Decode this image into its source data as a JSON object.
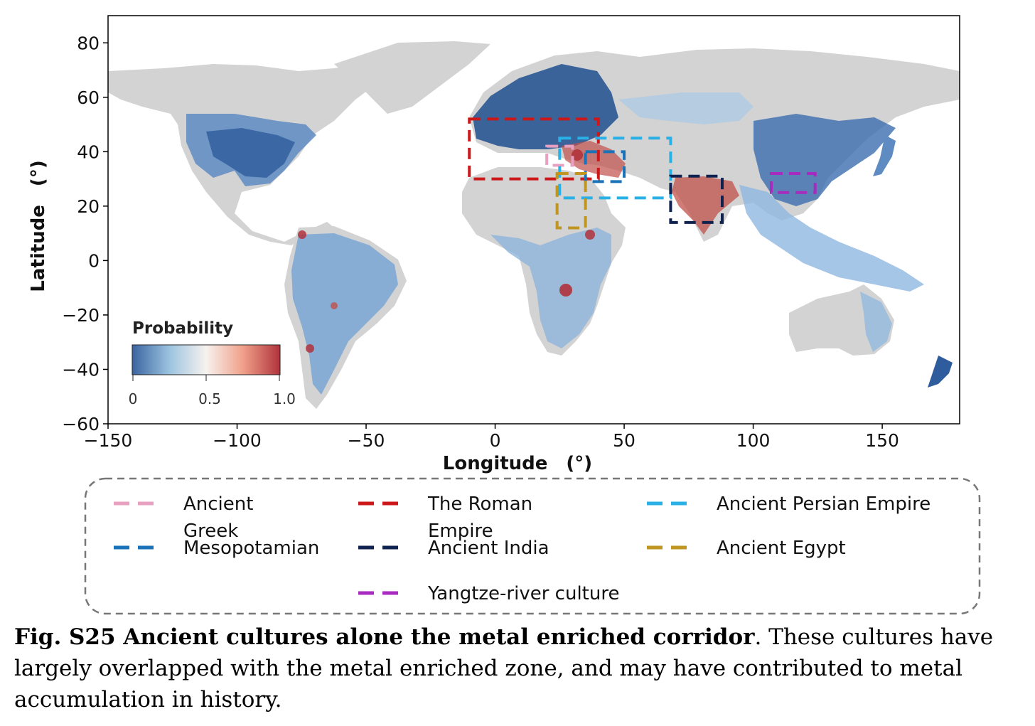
{
  "chart_data": {
    "type": "map",
    "xlabel": "Longitude　(°)",
    "ylabel": "Latitude　(°)",
    "xlim": [
      -150,
      180
    ],
    "ylim": [
      -60,
      90
    ],
    "xticks": [
      -150,
      -100,
      -50,
      0,
      50,
      100,
      150
    ],
    "xtick_labels": [
      "−150",
      "−100",
      "−50",
      "0",
      "50",
      "100",
      "150"
    ],
    "yticks": [
      80,
      60,
      40,
      20,
      0,
      -20,
      -40,
      -60
    ],
    "ytick_labels": [
      "80",
      "60",
      "40",
      "20",
      "0",
      "−20",
      "−40",
      "−60"
    ],
    "colorbar": {
      "title": "Probability",
      "ticks": [
        "0",
        "0.5",
        "1.0"
      ],
      "colors": [
        "#3a64a0",
        "#9bc3e0",
        "#f7f2ee",
        "#f0a08a",
        "#b0333c"
      ],
      "no_data_color": "#d3d3d3"
    },
    "regions": [
      {
        "name": "Ancient Greek",
        "color": "#e8a0c0",
        "lon": [
          20,
          30
        ],
        "lat": [
          35,
          42
        ]
      },
      {
        "name": "The Roman Empire",
        "color": "#cc1818",
        "lon": [
          -10,
          40
        ],
        "lat": [
          30,
          52
        ]
      },
      {
        "name": "Ancient Persian Empire",
        "color": "#29b0e6",
        "lon": [
          25,
          68
        ],
        "lat": [
          23,
          45
        ]
      },
      {
        "name": "Mesopotamian",
        "color": "#1a72b8",
        "lon": [
          35,
          50
        ],
        "lat": [
          29,
          40
        ]
      },
      {
        "name": "Ancient India",
        "color": "#0f2250",
        "lon": [
          68,
          88
        ],
        "lat": [
          14,
          31
        ]
      },
      {
        "name": "Ancient Egypt",
        "color": "#c09522",
        "lon": [
          24,
          35
        ],
        "lat": [
          12,
          32
        ]
      },
      {
        "name": "Yangtze-river culture",
        "color": "#a82bbf",
        "lon": [
          107,
          124
        ],
        "lat": [
          25,
          32
        ]
      }
    ]
  },
  "legend": [
    {
      "label": "Ancient\nGreek",
      "color": "#e8a0c0"
    },
    {
      "label": "The Roman\nEmpire",
      "color": "#cc1818"
    },
    {
      "label": "Ancient Persian Empire",
      "color": "#29b0e6"
    },
    {
      "label": "Mesopotamian",
      "color": "#1a72b8"
    },
    {
      "label": "Ancient India",
      "color": "#0f2250"
    },
    {
      "label": "Ancient Egypt",
      "color": "#c09522"
    },
    {
      "label": "Yangtze-river culture",
      "color": "#a82bbf"
    }
  ],
  "caption": {
    "bold": "Fig. S25 Ancient cultures alone the metal enriched corridor",
    "text": ". These cultures have largely overlapped with the metal enriched zone, and may have contributed to metal accumulation in history."
  }
}
